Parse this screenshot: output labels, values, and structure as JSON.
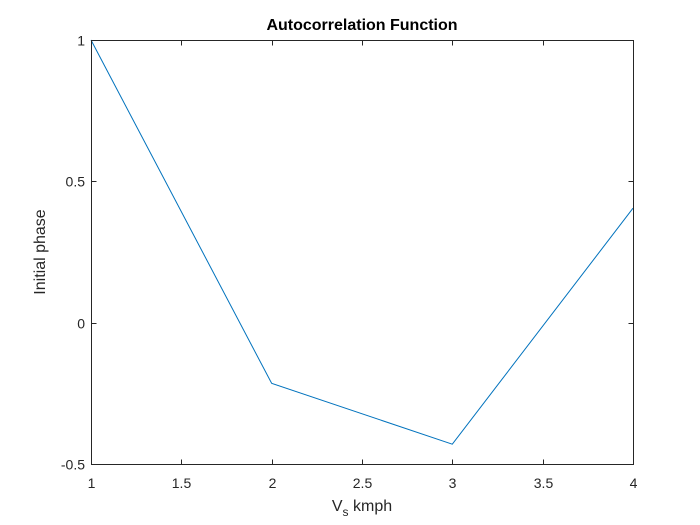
{
  "chart_data": {
    "type": "line",
    "title": "Autocorrelation Function",
    "xlabel": {
      "main": "V",
      "subscript": "s",
      "suffix": " kmph"
    },
    "ylabel": "Initial phase",
    "xlim": [
      1,
      4
    ],
    "ylim": [
      -0.5,
      1
    ],
    "xticks": [
      1,
      1.5,
      2,
      2.5,
      3,
      3.5,
      4
    ],
    "xtick_labels": [
      "1",
      "1.5",
      "2",
      "2.5",
      "3",
      "3.5",
      "4"
    ],
    "yticks": [
      -0.5,
      0,
      0.5,
      1
    ],
    "ytick_labels": [
      "-0.5",
      "0",
      "0.5",
      "1"
    ],
    "grid": false,
    "series": [
      {
        "color": "#0072BD",
        "x": [
          1,
          2,
          3,
          4
        ],
        "y": [
          1,
          -0.215,
          -0.43,
          0.405
        ]
      }
    ]
  }
}
